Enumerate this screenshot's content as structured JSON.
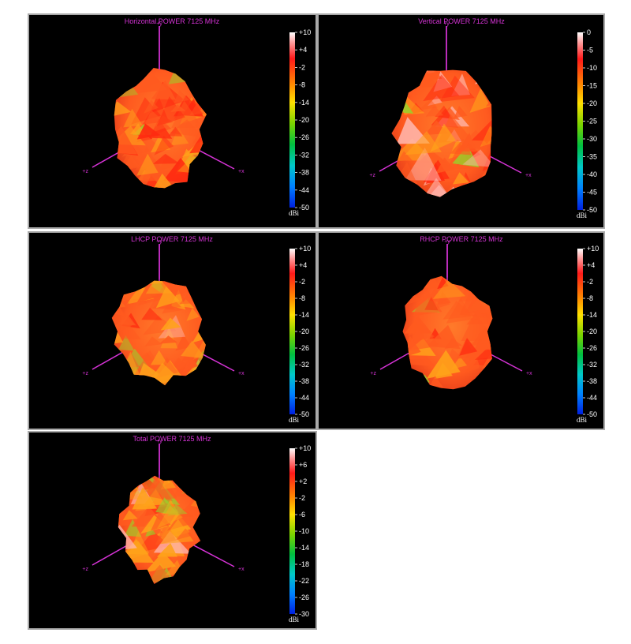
{
  "chart_data": [
    {
      "type": "heatmap",
      "title": "Horizontal POWER 7125  MHz",
      "axes": [
        "+y",
        "+x",
        "+z"
      ],
      "colorbar": {
        "unit": "dBi",
        "ticks": [
          "+10",
          "+4",
          "-2",
          "-8",
          "-14",
          "-20",
          "-26",
          "-32",
          "-38",
          "-44",
          "-50"
        ],
        "range": [
          -50,
          10
        ]
      }
    },
    {
      "type": "heatmap",
      "title": "Vertical POWER 7125  MHz",
      "axes": [
        "+y",
        "+x",
        "+z"
      ],
      "colorbar": {
        "unit": "dBi",
        "ticks": [
          "0",
          "-5",
          "-10",
          "-15",
          "-20",
          "-25",
          "-30",
          "-35",
          "-40",
          "-45",
          "-50"
        ],
        "range": [
          -50,
          0
        ]
      }
    },
    {
      "type": "heatmap",
      "title": "LHCP POWER 7125  MHz",
      "axes": [
        "+y",
        "+x",
        "+z"
      ],
      "colorbar": {
        "unit": "dBi",
        "ticks": [
          "+10",
          "+4",
          "-2",
          "-8",
          "-14",
          "-20",
          "-26",
          "-32",
          "-38",
          "-44",
          "-50"
        ],
        "range": [
          -50,
          10
        ]
      }
    },
    {
      "type": "heatmap",
      "title": "RHCP POWER 7125  MHz",
      "axes": [
        "+y",
        "+x",
        "+z"
      ],
      "colorbar": {
        "unit": "dBi",
        "ticks": [
          "+10",
          "+4",
          "-2",
          "-8",
          "-14",
          "-20",
          "-26",
          "-32",
          "-38",
          "-44",
          "-50"
        ],
        "range": [
          -50,
          10
        ]
      }
    },
    {
      "type": "heatmap",
      "title": "Total POWER 7125  MHz",
      "axes": [
        "+y",
        "+x",
        "+z"
      ],
      "colorbar": {
        "unit": "dBi",
        "ticks": [
          "+10",
          "+6",
          "+2",
          "-2",
          "-6",
          "-10",
          "-14",
          "-18",
          "-22",
          "-26",
          "-30"
        ],
        "range": [
          -30,
          10
        ]
      }
    }
  ],
  "colors": {
    "background": "#000000",
    "axis": "#d633d6",
    "pattern_main": "#ff5a1f",
    "pattern_hot": "#ff2a10",
    "pattern_warm": "#ffa21a",
    "pattern_green": "#9ad12a",
    "pattern_light": "#ffb8b0"
  }
}
